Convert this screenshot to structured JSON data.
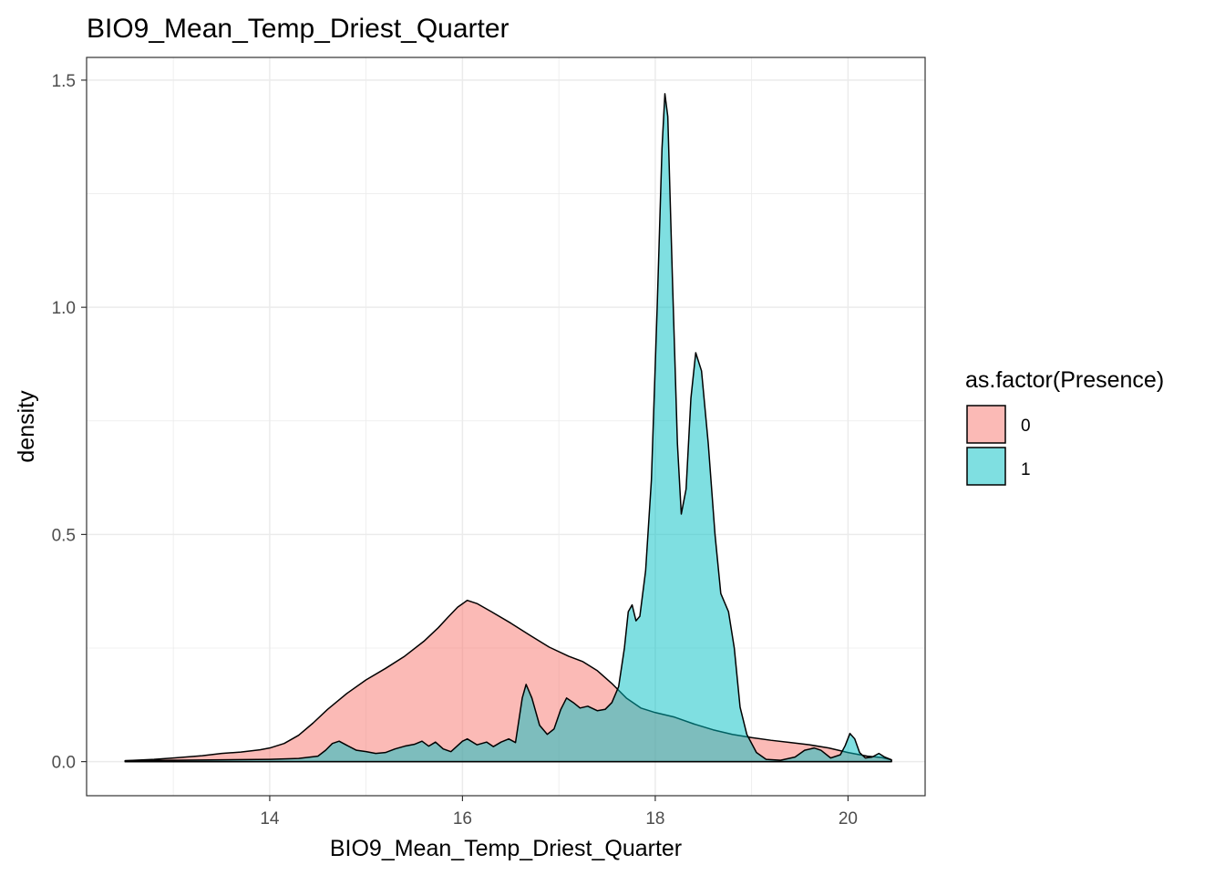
{
  "chart_data": {
    "type": "area",
    "title": "BIO9_Mean_Temp_Driest_Quarter",
    "xlabel": "BIO9_Mean_Temp_Driest_Quarter",
    "ylabel": "density",
    "xlim": [
      12.1,
      20.8
    ],
    "ylim": [
      -0.075,
      1.55
    ],
    "x_ticks": [
      14,
      16,
      18,
      20
    ],
    "x_tick_labels": [
      "14",
      "16",
      "18",
      "20"
    ],
    "x_minor_ticks": [
      13,
      15,
      17,
      19
    ],
    "y_ticks": [
      0,
      0.5,
      1,
      1.5
    ],
    "y_tick_labels": [
      "0.0",
      "0.5",
      "1.0",
      "1.5"
    ],
    "y_minor_ticks": [
      0.25,
      0.75,
      1.25
    ],
    "grid": true,
    "legend": {
      "title": "as.factor(Presence)",
      "position": "right"
    },
    "series": [
      {
        "name": "0",
        "color": "#F8766D",
        "points": [
          [
            12.5,
            0.002
          ],
          [
            12.8,
            0.005
          ],
          [
            13.0,
            0.008
          ],
          [
            13.3,
            0.013
          ],
          [
            13.5,
            0.018
          ],
          [
            13.7,
            0.021
          ],
          [
            13.9,
            0.026
          ],
          [
            14.0,
            0.03
          ],
          [
            14.15,
            0.04
          ],
          [
            14.3,
            0.058
          ],
          [
            14.45,
            0.085
          ],
          [
            14.6,
            0.115
          ],
          [
            14.8,
            0.15
          ],
          [
            15.0,
            0.18
          ],
          [
            15.2,
            0.205
          ],
          [
            15.4,
            0.232
          ],
          [
            15.6,
            0.265
          ],
          [
            15.75,
            0.295
          ],
          [
            15.85,
            0.318
          ],
          [
            15.95,
            0.34
          ],
          [
            16.05,
            0.355
          ],
          [
            16.15,
            0.348
          ],
          [
            16.3,
            0.33
          ],
          [
            16.5,
            0.305
          ],
          [
            16.7,
            0.278
          ],
          [
            16.9,
            0.252
          ],
          [
            17.1,
            0.232
          ],
          [
            17.25,
            0.22
          ],
          [
            17.4,
            0.2
          ],
          [
            17.55,
            0.172
          ],
          [
            17.7,
            0.14
          ],
          [
            17.85,
            0.118
          ],
          [
            18.0,
            0.108
          ],
          [
            18.2,
            0.098
          ],
          [
            18.4,
            0.083
          ],
          [
            18.6,
            0.07
          ],
          [
            18.8,
            0.06
          ],
          [
            19.0,
            0.053
          ],
          [
            19.2,
            0.047
          ],
          [
            19.4,
            0.042
          ],
          [
            19.6,
            0.037
          ],
          [
            19.8,
            0.03
          ],
          [
            20.0,
            0.02
          ],
          [
            20.2,
            0.012
          ],
          [
            20.35,
            0.009
          ],
          [
            20.45,
            0.004
          ]
        ]
      },
      {
        "name": "1",
        "color": "#00BFC4",
        "points": [
          [
            12.5,
            0.002
          ],
          [
            13.0,
            0.003
          ],
          [
            13.5,
            0.004
          ],
          [
            14.0,
            0.005
          ],
          [
            14.3,
            0.007
          ],
          [
            14.5,
            0.012
          ],
          [
            14.58,
            0.025
          ],
          [
            14.65,
            0.04
          ],
          [
            14.72,
            0.045
          ],
          [
            14.8,
            0.036
          ],
          [
            14.9,
            0.025
          ],
          [
            15.0,
            0.022
          ],
          [
            15.1,
            0.018
          ],
          [
            15.2,
            0.02
          ],
          [
            15.3,
            0.028
          ],
          [
            15.4,
            0.034
          ],
          [
            15.5,
            0.038
          ],
          [
            15.58,
            0.045
          ],
          [
            15.65,
            0.034
          ],
          [
            15.72,
            0.043
          ],
          [
            15.8,
            0.028
          ],
          [
            15.88,
            0.022
          ],
          [
            16.0,
            0.045
          ],
          [
            16.05,
            0.05
          ],
          [
            16.15,
            0.037
          ],
          [
            16.25,
            0.043
          ],
          [
            16.32,
            0.033
          ],
          [
            16.4,
            0.043
          ],
          [
            16.48,
            0.05
          ],
          [
            16.55,
            0.042
          ],
          [
            16.62,
            0.14
          ],
          [
            16.66,
            0.17
          ],
          [
            16.72,
            0.14
          ],
          [
            16.8,
            0.08
          ],
          [
            16.88,
            0.06
          ],
          [
            16.95,
            0.072
          ],
          [
            17.02,
            0.115
          ],
          [
            17.08,
            0.14
          ],
          [
            17.15,
            0.13
          ],
          [
            17.22,
            0.118
          ],
          [
            17.3,
            0.122
          ],
          [
            17.4,
            0.112
          ],
          [
            17.48,
            0.115
          ],
          [
            17.55,
            0.13
          ],
          [
            17.62,
            0.165
          ],
          [
            17.68,
            0.25
          ],
          [
            17.72,
            0.33
          ],
          [
            17.76,
            0.345
          ],
          [
            17.8,
            0.31
          ],
          [
            17.84,
            0.32
          ],
          [
            17.9,
            0.42
          ],
          [
            17.96,
            0.62
          ],
          [
            18.02,
            1.0
          ],
          [
            18.07,
            1.35
          ],
          [
            18.1,
            1.47
          ],
          [
            18.13,
            1.42
          ],
          [
            18.18,
            1.05
          ],
          [
            18.23,
            0.7
          ],
          [
            18.27,
            0.545
          ],
          [
            18.32,
            0.6
          ],
          [
            18.37,
            0.8
          ],
          [
            18.42,
            0.9
          ],
          [
            18.48,
            0.86
          ],
          [
            18.55,
            0.7
          ],
          [
            18.62,
            0.5
          ],
          [
            18.68,
            0.37
          ],
          [
            18.76,
            0.33
          ],
          [
            18.82,
            0.25
          ],
          [
            18.88,
            0.12
          ],
          [
            18.95,
            0.06
          ],
          [
            19.05,
            0.02
          ],
          [
            19.15,
            0.005
          ],
          [
            19.3,
            0.003
          ],
          [
            19.45,
            0.01
          ],
          [
            19.55,
            0.025
          ],
          [
            19.65,
            0.03
          ],
          [
            19.72,
            0.025
          ],
          [
            19.82,
            0.008
          ],
          [
            19.92,
            0.015
          ],
          [
            19.97,
            0.035
          ],
          [
            20.02,
            0.062
          ],
          [
            20.07,
            0.05
          ],
          [
            20.12,
            0.02
          ],
          [
            20.18,
            0.008
          ],
          [
            20.25,
            0.01
          ],
          [
            20.32,
            0.018
          ],
          [
            20.38,
            0.01
          ],
          [
            20.45,
            0.004
          ]
        ]
      }
    ]
  }
}
